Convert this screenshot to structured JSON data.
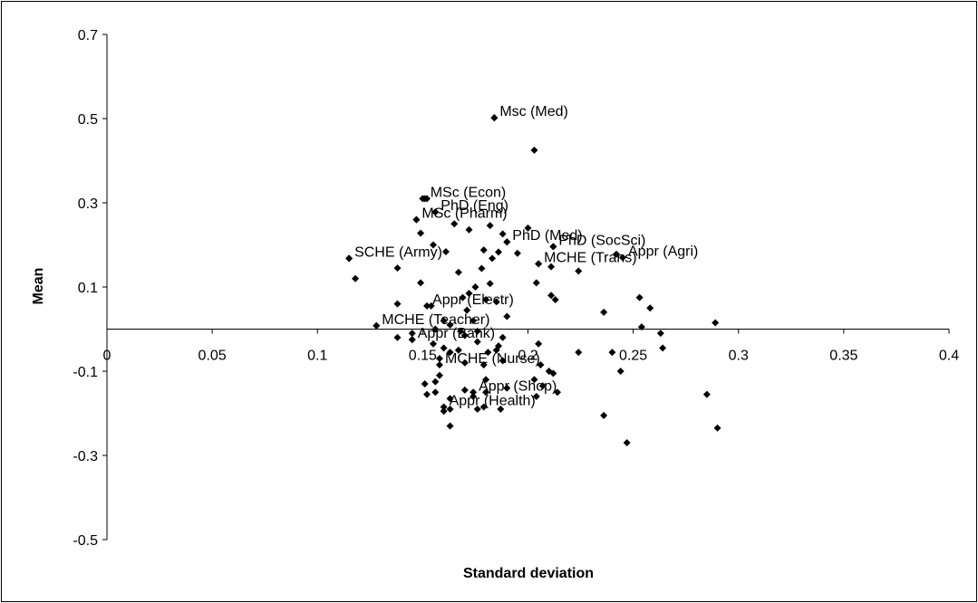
{
  "chart_data": {
    "type": "scatter",
    "title": "",
    "xlabel": "Standard deviation",
    "ylabel": "Mean",
    "xlim": [
      0,
      0.4
    ],
    "ylim": [
      -0.5,
      0.7
    ],
    "x_ticks": [
      0,
      0.05,
      0.1,
      0.15,
      0.2,
      0.25,
      0.3,
      0.35,
      0.4
    ],
    "x_tick_labels": [
      "0",
      "0.05",
      "0.1",
      "0.15",
      "0.2",
      "0.25",
      "0.3",
      "0.35",
      "0.4"
    ],
    "y_ticks": [
      -0.5,
      -0.3,
      -0.1,
      0.1,
      0.3,
      0.5,
      0.7
    ],
    "y_tick_labels": [
      "-0.5",
      "-0.3",
      "-0.1",
      "0.1",
      "0.3",
      "0.5",
      "0.7"
    ],
    "grid": false,
    "legend": "none",
    "marker": "diamond",
    "marker_color": "#000000",
    "labeled_points": [
      {
        "label": "Msc (Med)",
        "x": 0.184,
        "y": 0.502
      },
      {
        "label": "MSc (Econ)",
        "x": 0.151,
        "y": 0.31
      },
      {
        "label": "PhD (Eng)",
        "x": 0.156,
        "y": 0.278
      },
      {
        "label": "MSc (Pharm)",
        "x": 0.147,
        "y": 0.26
      },
      {
        "label": "PhD (Med)",
        "x": 0.19,
        "y": 0.207
      },
      {
        "label": "PhD (SocSci)",
        "x": 0.212,
        "y": 0.196
      },
      {
        "label": "SCHE (Army)",
        "x": 0.115,
        "y": 0.168
      },
      {
        "label": "MCHE (Trans)",
        "x": 0.205,
        "y": 0.155
      },
      {
        "label": "Appr (Agri)",
        "x": 0.245,
        "y": 0.17
      },
      {
        "label": "Appr (Electr)",
        "x": 0.152,
        "y": 0.055
      },
      {
        "label": "MCHE (Teacher)",
        "x": 0.128,
        "y": 0.008
      },
      {
        "label": "Appr (Bank)",
        "x": 0.145,
        "y": -0.025
      },
      {
        "label": "MCHE (Nurse)",
        "x": 0.158,
        "y": -0.085
      },
      {
        "label": "Appr (Shop)",
        "x": 0.174,
        "y": -0.15
      },
      {
        "label": "Appr (Health)",
        "x": 0.16,
        "y": -0.185
      }
    ],
    "points": [
      [
        0.184,
        0.502
      ],
      [
        0.203,
        0.425
      ],
      [
        0.15,
        0.31
      ],
      [
        0.152,
        0.31
      ],
      [
        0.156,
        0.278
      ],
      [
        0.147,
        0.26
      ],
      [
        0.165,
        0.25
      ],
      [
        0.182,
        0.246
      ],
      [
        0.2,
        0.24
      ],
      [
        0.172,
        0.236
      ],
      [
        0.149,
        0.228
      ],
      [
        0.188,
        0.226
      ],
      [
        0.19,
        0.207
      ],
      [
        0.155,
        0.2
      ],
      [
        0.212,
        0.196
      ],
      [
        0.179,
        0.188
      ],
      [
        0.161,
        0.184
      ],
      [
        0.186,
        0.183
      ],
      [
        0.195,
        0.18
      ],
      [
        0.242,
        0.178
      ],
      [
        0.115,
        0.168
      ],
      [
        0.183,
        0.168
      ],
      [
        0.205,
        0.155
      ],
      [
        0.211,
        0.148
      ],
      [
        0.138,
        0.145
      ],
      [
        0.178,
        0.144
      ],
      [
        0.224,
        0.138
      ],
      [
        0.167,
        0.135
      ],
      [
        0.118,
        0.12
      ],
      [
        0.149,
        0.11
      ],
      [
        0.182,
        0.108
      ],
      [
        0.204,
        0.11
      ],
      [
        0.175,
        0.1
      ],
      [
        0.172,
        0.085
      ],
      [
        0.18,
        0.07
      ],
      [
        0.211,
        0.08
      ],
      [
        0.213,
        0.07
      ],
      [
        0.169,
        0.075
      ],
      [
        0.253,
        0.075
      ],
      [
        0.258,
        0.05
      ],
      [
        0.185,
        0.065
      ],
      [
        0.154,
        0.055
      ],
      [
        0.138,
        0.06
      ],
      [
        0.171,
        0.045
      ],
      [
        0.236,
        0.04
      ],
      [
        0.19,
        0.03
      ],
      [
        0.16,
        0.02
      ],
      [
        0.174,
        0.02
      ],
      [
        0.163,
        0.01
      ],
      [
        0.289,
        0.015
      ],
      [
        0.128,
        0.008
      ],
      [
        0.254,
        0.005
      ],
      [
        0.156,
        0.0
      ],
      [
        0.168,
        -0.005
      ],
      [
        0.176,
        -0.005
      ],
      [
        0.145,
        -0.01
      ],
      [
        0.263,
        -0.01
      ],
      [
        0.17,
        -0.015
      ],
      [
        0.188,
        -0.02
      ],
      [
        0.138,
        -0.02
      ],
      [
        0.145,
        -0.025
      ],
      [
        0.176,
        -0.03
      ],
      [
        0.155,
        -0.035
      ],
      [
        0.186,
        -0.04
      ],
      [
        0.16,
        -0.045
      ],
      [
        0.167,
        -0.05
      ],
      [
        0.185,
        -0.05
      ],
      [
        0.205,
        -0.035
      ],
      [
        0.163,
        -0.055
      ],
      [
        0.181,
        -0.055
      ],
      [
        0.224,
        -0.055
      ],
      [
        0.24,
        -0.055
      ],
      [
        0.264,
        -0.045
      ],
      [
        0.158,
        -0.07
      ],
      [
        0.188,
        -0.075
      ],
      [
        0.17,
        -0.08
      ],
      [
        0.179,
        -0.085
      ],
      [
        0.206,
        -0.085
      ],
      [
        0.21,
        -0.1
      ],
      [
        0.244,
        -0.1
      ],
      [
        0.212,
        -0.105
      ],
      [
        0.158,
        -0.11
      ],
      [
        0.156,
        -0.125
      ],
      [
        0.151,
        -0.13
      ],
      [
        0.203,
        -0.12
      ],
      [
        0.18,
        -0.12
      ],
      [
        0.207,
        -0.135
      ],
      [
        0.19,
        -0.14
      ],
      [
        0.17,
        -0.145
      ],
      [
        0.18,
        -0.15
      ],
      [
        0.214,
        -0.15
      ],
      [
        0.156,
        -0.15
      ],
      [
        0.152,
        -0.155
      ],
      [
        0.174,
        -0.16
      ],
      [
        0.163,
        -0.165
      ],
      [
        0.204,
        -0.16
      ],
      [
        0.285,
        -0.155
      ],
      [
        0.163,
        -0.19
      ],
      [
        0.176,
        -0.19
      ],
      [
        0.179,
        -0.185
      ],
      [
        0.187,
        -0.19
      ],
      [
        0.16,
        -0.195
      ],
      [
        0.236,
        -0.205
      ],
      [
        0.163,
        -0.23
      ],
      [
        0.29,
        -0.235
      ],
      [
        0.247,
        -0.27
      ]
    ]
  }
}
